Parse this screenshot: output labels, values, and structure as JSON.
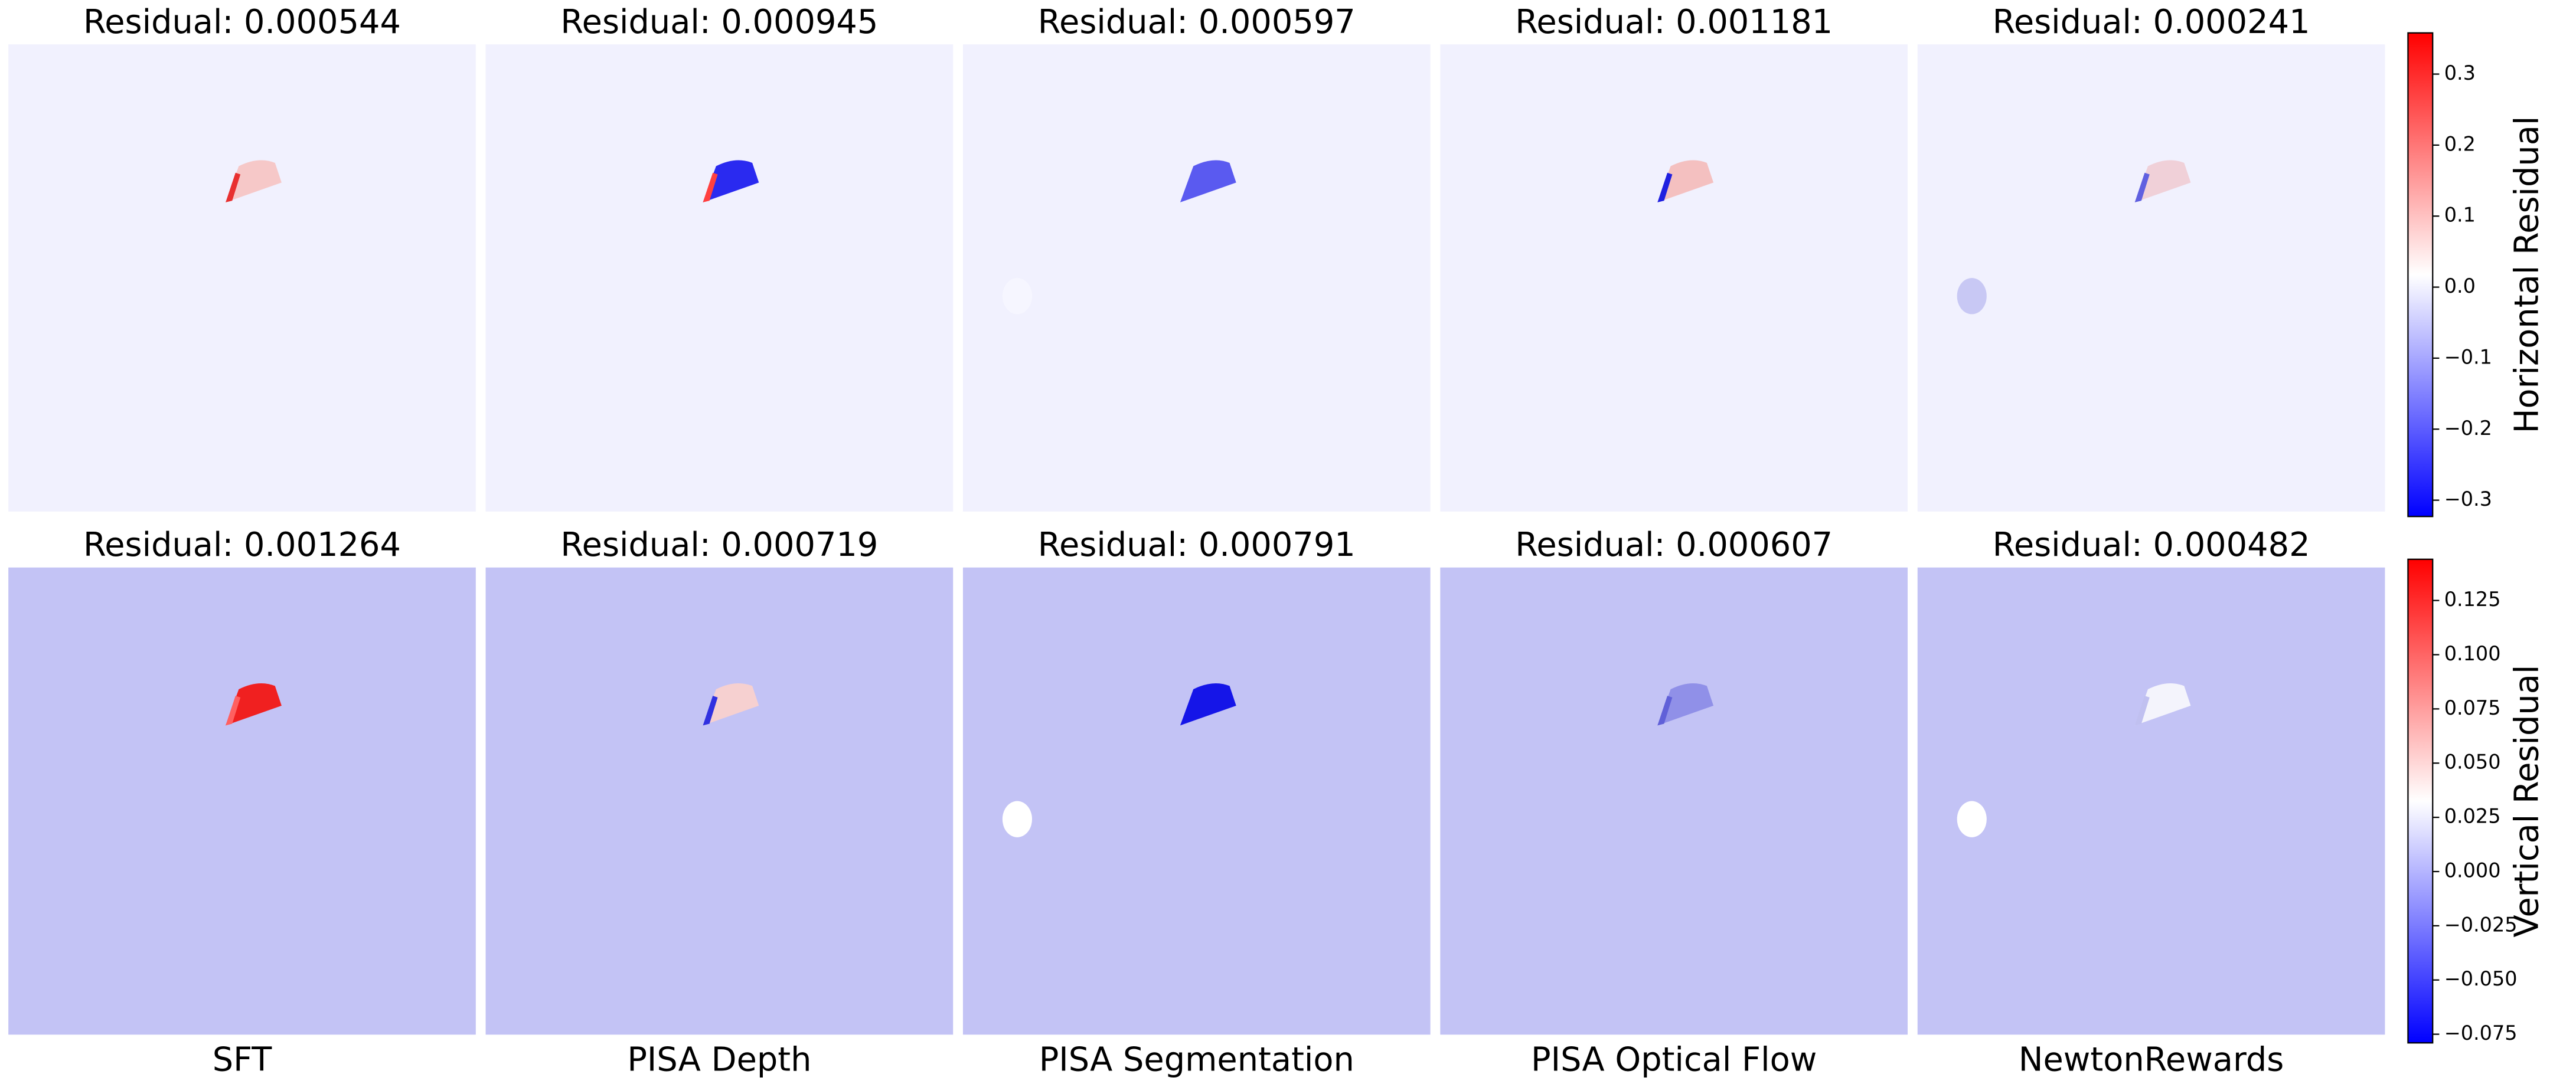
{
  "rows": [
    {
      "titles": [
        "Residual: 0.000544",
        "Residual: 0.000945",
        "Residual: 0.000597",
        "Residual: 0.001181",
        "Residual: 0.000241"
      ],
      "colorbar": {
        "label": "Horizontal Residual",
        "ylim": [
          -0.323,
          0.358
        ],
        "yticks": [
          {
            "value": 0.3,
            "label": "0.3"
          },
          {
            "value": 0.2,
            "label": "0.2"
          },
          {
            "value": 0.1,
            "label": "0.1"
          },
          {
            "value": 0,
            "label": "0.0"
          },
          {
            "value": -0.1,
            "label": "−0.1"
          },
          {
            "value": -0.2,
            "label": "−0.2"
          },
          {
            "value": -0.3,
            "label": "−0.3"
          }
        ]
      }
    },
    {
      "titles": [
        "Residual: 0.001264",
        "Residual: 0.000719",
        "Residual: 0.000791",
        "Residual: 0.000607",
        "Residual: 0.000482"
      ],
      "colorbar": {
        "label": "Vertical Residual",
        "ylim": [
          -0.079,
          0.144
        ],
        "yticks": [
          {
            "value": 0.125,
            "label": "0.125"
          },
          {
            "value": 0.1,
            "label": "0.100"
          },
          {
            "value": 0.075,
            "label": "0.075"
          },
          {
            "value": 0.05,
            "label": "0.050"
          },
          {
            "value": 0.025,
            "label": "0.025"
          },
          {
            "value": 0,
            "label": "0.000"
          },
          {
            "value": -0.025,
            "label": "−0.025"
          },
          {
            "value": -0.05,
            "label": "−0.050"
          },
          {
            "value": -0.075,
            "label": "−0.075"
          }
        ]
      }
    }
  ],
  "columns": [
    "SFT",
    "PISA Depth",
    "PISA Segmentation",
    "PISA Optical Flow",
    "NewtonRewards"
  ]
}
